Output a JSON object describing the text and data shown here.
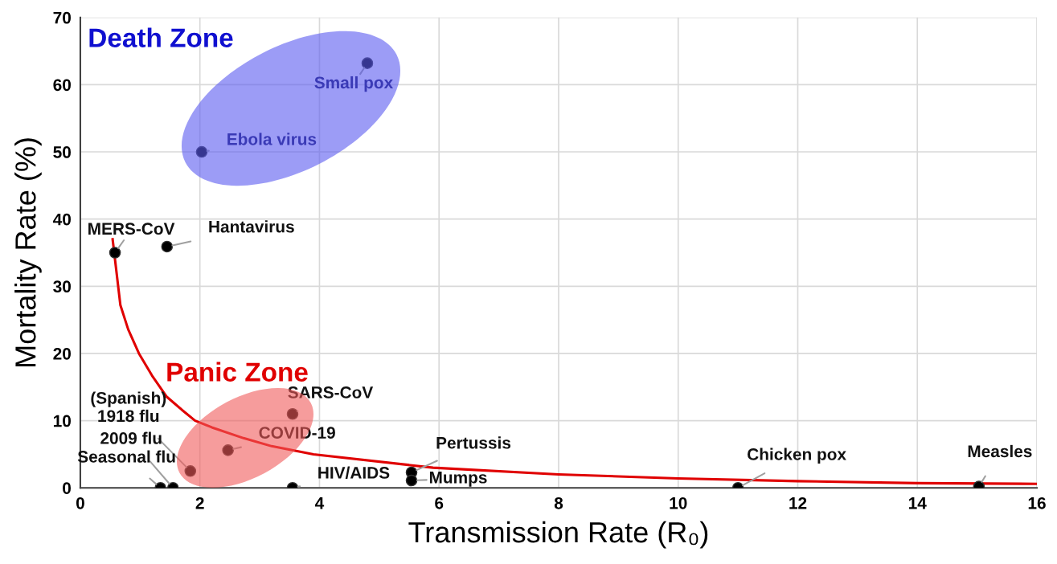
{
  "chart_data": {
    "type": "scatter",
    "xlabel": "Transmission Rate (R₀)",
    "ylabel": "Mortality Rate (%)",
    "xlim": [
      0,
      16
    ],
    "xticks": [
      0,
      2,
      4,
      6,
      8,
      10,
      12,
      14,
      16
    ],
    "ylim": [
      0,
      70
    ],
    "yticks": [
      0,
      10,
      20,
      30,
      40,
      50,
      60,
      70
    ],
    "grid": true,
    "series": [
      {
        "color": "#000000",
        "marker": "circle",
        "x": [
          4.8,
          2.03,
          0.58,
          1.45,
          3.55,
          2.47,
          1.84,
          1.55,
          1.34,
          3.55,
          5.54,
          5.54,
          11.0,
          15.03
        ],
        "values": [
          63.2,
          50,
          35,
          35.9,
          11,
          5.6,
          2.5,
          0,
          0,
          0,
          2.3,
          1.1,
          0,
          0.2
        ]
      },
      {
        "type": "line",
        "color": "#e00000",
        "line_style": "solid",
        "marker": "none",
        "x": [
          0.54,
          0.67,
          0.8,
          0.98,
          1.2,
          1.44,
          1.7,
          1.92,
          2.2,
          2.73,
          3.2,
          3.9,
          5.9,
          8,
          10,
          12,
          14,
          16
        ],
        "values": [
          37,
          27.2,
          23.6,
          20,
          16.7,
          13.6,
          11.6,
          10,
          9.0,
          7.4,
          6.2,
          5.0,
          3.0,
          2.0,
          1.4,
          1.0,
          0.7,
          0.6
        ]
      }
    ],
    "annotations": [
      "Death Zone",
      "Panic Zone",
      {
        "text": "Small pox",
        "x": 4.8,
        "y": 63.2
      },
      {
        "text": "Ebola virus",
        "x": 2.03,
        "y": 50
      },
      {
        "text": "MERS-CoV",
        "x": 0.58,
        "y": 35
      },
      {
        "text": "Hantavirus",
        "x": 1.45,
        "y": 35.9
      },
      {
        "text": "SARS-CoV",
        "x": 3.55,
        "y": 11
      },
      {
        "text": "COVID-19",
        "x": 2.47,
        "y": 5.6
      },
      {
        "text": "(Spanish)\n1918 flu",
        "x": 1.84,
        "y": 2.5
      },
      {
        "text": "2009 flu",
        "x": 1.55,
        "y": 0
      },
      {
        "text": "Seasonal flu",
        "x": 1.34,
        "y": 0
      },
      {
        "text": "HIV/AIDS",
        "x": 3.55,
        "y": 0
      },
      {
        "text": "Pertussis",
        "x": 5.54,
        "y": 2.3
      },
      {
        "text": "Mumps",
        "x": 5.54,
        "y": 1.1
      },
      {
        "text": "Chicken pox",
        "x": 11.0,
        "y": 0
      },
      {
        "text": "Measles",
        "x": 15.03,
        "y": 0.2
      }
    ]
  }
}
